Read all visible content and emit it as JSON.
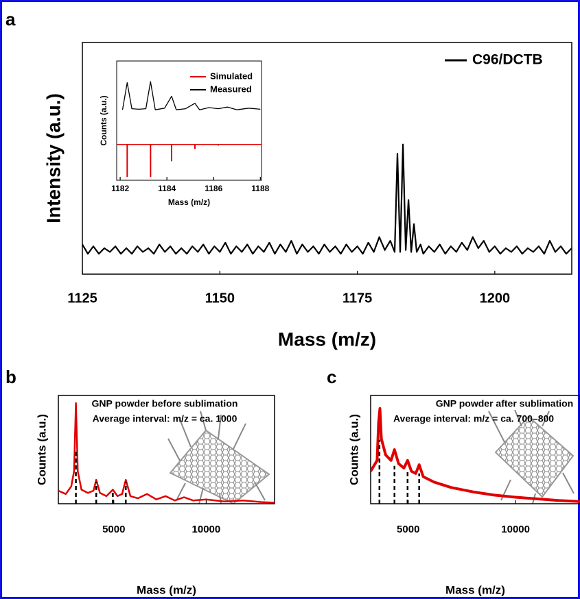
{
  "chart_data": [
    {
      "type": "line",
      "panel_label": "a",
      "xlabel": "Mass (m/z)",
      "ylabel": "Intensity (a.u.)",
      "xlim": [
        1125,
        1214
      ],
      "ylim": [
        -0.1,
        1.15
      ],
      "xticks": [
        1125,
        1150,
        1175,
        1200
      ],
      "series": [
        {
          "name": "C96/DCTB",
          "color": "#000000",
          "x": [
            1125,
            1126,
            1127,
            1128,
            1129,
            1130,
            1131,
            1132,
            1133,
            1134,
            1135,
            1136,
            1137,
            1138,
            1139,
            1140,
            1141,
            1142,
            1143,
            1144,
            1145,
            1146,
            1147,
            1148,
            1149,
            1150,
            1151,
            1152,
            1153,
            1154,
            1155,
            1156,
            1157,
            1158,
            1159,
            1160,
            1161,
            1162,
            1163,
            1164,
            1165,
            1166,
            1167,
            1168,
            1169,
            1170,
            1171,
            1172,
            1173,
            1174,
            1175,
            1176,
            1177,
            1178,
            1179,
            1180,
            1181,
            1181.8,
            1182.3,
            1182.8,
            1183.3,
            1183.8,
            1184.3,
            1184.8,
            1185.3,
            1185.8,
            1186.5,
            1187,
            1188,
            1189,
            1190,
            1191,
            1192,
            1193,
            1194,
            1195,
            1196,
            1197,
            1198,
            1199,
            1200,
            1201,
            1202,
            1203,
            1204,
            1205,
            1206,
            1207,
            1208,
            1209,
            1210,
            1211,
            1212,
            1213,
            1214
          ],
          "values": [
            0.06,
            0.01,
            0.05,
            0.01,
            0.04,
            0.02,
            0.05,
            0.01,
            0.04,
            0.01,
            0.05,
            0.02,
            0.04,
            0.01,
            0.06,
            0.02,
            0.05,
            0.01,
            0.04,
            0.01,
            0.05,
            0.02,
            0.06,
            0.01,
            0.05,
            0.02,
            0.07,
            0.01,
            0.05,
            0.02,
            0.06,
            0.01,
            0.05,
            0.02,
            0.07,
            0.01,
            0.06,
            0.02,
            0.08,
            0.01,
            0.06,
            0.02,
            0.05,
            0.01,
            0.06,
            0.02,
            0.05,
            0.01,
            0.06,
            0.02,
            0.05,
            0.01,
            0.07,
            0.02,
            0.1,
            0.03,
            0.08,
            0.02,
            0.55,
            0.02,
            0.6,
            0.03,
            0.3,
            0.02,
            0.17,
            0.02,
            0.06,
            0.01,
            0.05,
            0.02,
            0.06,
            0.01,
            0.05,
            0.02,
            0.07,
            0.03,
            0.1,
            0.04,
            0.08,
            0.02,
            0.05,
            0.01,
            0.04,
            0.02,
            0.05,
            0.01,
            0.04,
            0.02,
            0.05,
            0.01,
            0.08,
            0.02,
            0.05,
            0.01,
            0.04
          ]
        }
      ]
    },
    {
      "type": "line",
      "xlabel": "Mass (m/z)",
      "ylabel": "Counts (a.u.)",
      "xlim": [
        1181.85,
        1188.05
      ],
      "ylim": [
        -1.1,
        1.1
      ],
      "xticks": [
        1182,
        1184,
        1186,
        1188
      ],
      "series": [
        {
          "name": "Simulated",
          "color": "#e00000",
          "style": "stick",
          "baseline": -0.44,
          "x": [
            1182.3,
            1183.3,
            1184.2,
            1185.2,
            1186.2
          ],
          "values": [
            -1.04,
            -1.04,
            -0.75,
            -0.52,
            -0.46
          ]
        },
        {
          "name": "Measured",
          "color": "#000000",
          "x": [
            1182.1,
            1182.3,
            1182.5,
            1182.8,
            1183.1,
            1183.3,
            1183.5,
            1183.9,
            1184.2,
            1184.4,
            1184.8,
            1185.2,
            1185.4,
            1185.8,
            1186.2,
            1186.6,
            1187,
            1187.5,
            1188
          ],
          "values": [
            0.2,
            0.7,
            0.22,
            0.21,
            0.22,
            0.72,
            0.2,
            0.23,
            0.45,
            0.2,
            0.22,
            0.32,
            0.2,
            0.24,
            0.22,
            0.25,
            0.2,
            0.23,
            0.21
          ]
        }
      ]
    },
    {
      "type": "line",
      "panel_label": "b",
      "xlabel": "Mass (m/z)",
      "ylabel": "Counts (a.u.)",
      "annotations": [
        "GNP powder before sublimation",
        "Average interval: m/z = ca. 1000"
      ],
      "xlim": [
        2000,
        13700
      ],
      "ylim": [
        0,
        1
      ],
      "xticks": [
        5000,
        10000
      ],
      "series": [
        {
          "color": "#e00000",
          "x": [
            2000,
            2400,
            2700,
            2850,
            2950,
            3050,
            3250,
            3600,
            3900,
            4050,
            4250,
            4600,
            4950,
            5200,
            5450,
            5650,
            5900,
            6300,
            6800,
            7300,
            7800,
            8300,
            8800,
            9300,
            10000,
            11000,
            12000,
            13000,
            13700
          ],
          "values": [
            0.12,
            0.09,
            0.16,
            0.3,
            0.93,
            0.3,
            0.13,
            0.1,
            0.12,
            0.22,
            0.1,
            0.07,
            0.13,
            0.07,
            0.09,
            0.22,
            0.07,
            0.05,
            0.09,
            0.04,
            0.07,
            0.03,
            0.06,
            0.03,
            0.04,
            0.02,
            0.03,
            0.015,
            0.01
          ]
        }
      ],
      "peak_marks": {
        "x": [
          2950,
          4050,
          4950,
          5650
        ],
        "values": [
          0.5,
          0.2,
          0.12,
          0.2
        ]
      }
    },
    {
      "type": "line",
      "panel_label": "c",
      "xlabel": "Mass (m/z)",
      "ylabel": "Counts (a.u.)",
      "annotations": [
        "GNP powder after sublimation",
        "Average interval: m/z = ca. 700–800"
      ],
      "xlim": [
        3250,
        13000
      ],
      "ylim": [
        0,
        1
      ],
      "xticks": [
        5000,
        10000
      ],
      "series": [
        {
          "color": "#e00000",
          "x": [
            3250,
            3550,
            3620,
            3680,
            3750,
            3950,
            4200,
            4360,
            4550,
            4800,
            4970,
            5150,
            5350,
            5510,
            5700,
            6200,
            7000,
            8000,
            9000,
            10000,
            11000,
            12000,
            13000
          ],
          "values": [
            0.3,
            0.4,
            0.75,
            0.88,
            0.6,
            0.45,
            0.4,
            0.5,
            0.37,
            0.33,
            0.4,
            0.3,
            0.28,
            0.36,
            0.25,
            0.2,
            0.15,
            0.11,
            0.08,
            0.06,
            0.045,
            0.03,
            0.02
          ]
        }
      ],
      "peak_marks": {
        "x": [
          3660,
          4360,
          4970,
          5510
        ],
        "values": [
          0.59,
          0.35,
          0.3,
          0.28
        ]
      }
    }
  ]
}
